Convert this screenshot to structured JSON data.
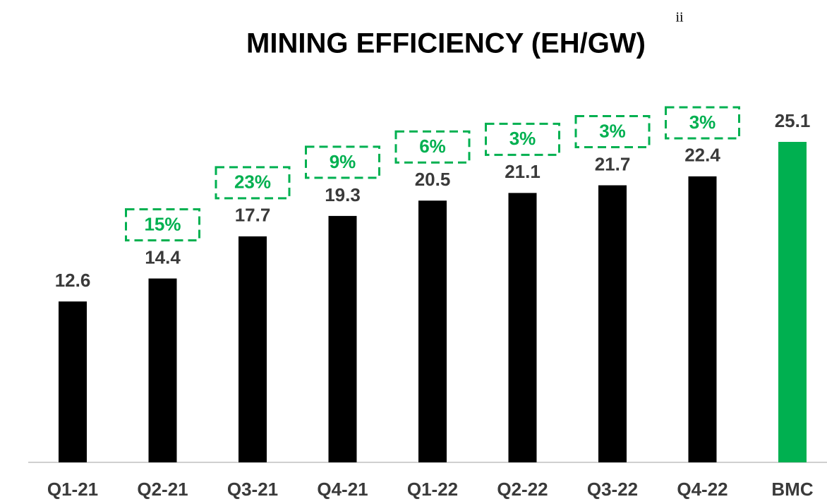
{
  "chart_data": {
    "type": "bar",
    "title": "MINING EFFICIENCY (EH/GW)",
    "title_note": "ii",
    "categories": [
      "Q1-21",
      "Q2-21",
      "Q3-21",
      "Q4-21",
      "Q1-22",
      "Q2-22",
      "Q3-22",
      "Q4-22",
      "BMC"
    ],
    "values": [
      12.6,
      14.4,
      17.7,
      19.3,
      20.5,
      21.1,
      21.7,
      22.4,
      25.1
    ],
    "colors": [
      "#000000",
      "#000000",
      "#000000",
      "#000000",
      "#000000",
      "#000000",
      "#000000",
      "#000000",
      "#00b050"
    ],
    "growth": {
      "color": "#00b050",
      "values": [
        null,
        15,
        23,
        9,
        6,
        3,
        3,
        3,
        null
      ],
      "value_labels": [
        null,
        "15%",
        "23%",
        "9%",
        "6%",
        "3%",
        "3%",
        "3%",
        null
      ]
    }
  }
}
